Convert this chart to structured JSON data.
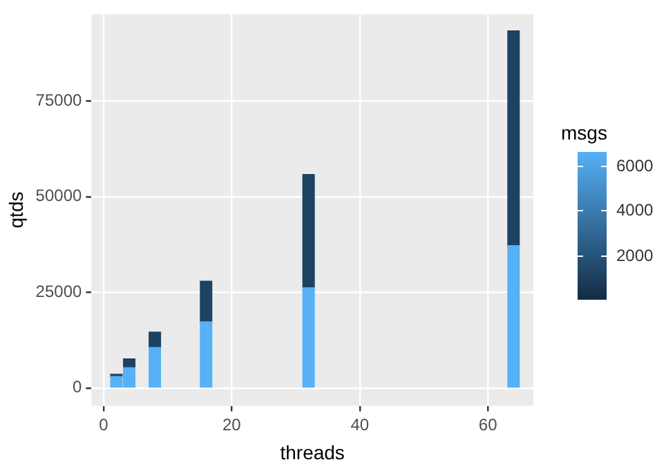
{
  "chart_data": {
    "type": "bar",
    "stacked": true,
    "xlabel": "threads",
    "ylabel": "qtds",
    "x": [
      2,
      4,
      8,
      16,
      32,
      64
    ],
    "series": [
      {
        "color": "#56b1f7",
        "values": [
          3000,
          5300,
          10600,
          17300,
          26200,
          37200
        ]
      },
      {
        "color": "#1d4263",
        "values": [
          600,
          2300,
          4000,
          10600,
          29600,
          56100
        ]
      }
    ],
    "xlim": [
      -1.9,
      67.1
    ],
    "xticks": [
      0,
      20,
      40,
      60
    ],
    "ylim": [
      -4650,
      97700
    ],
    "yticks": [
      0,
      25000,
      50000,
      75000
    ],
    "grid": true,
    "clabel": "msgs",
    "clim": [
      0,
      6600
    ],
    "cticks": [
      2000,
      4000,
      6000
    ]
  }
}
